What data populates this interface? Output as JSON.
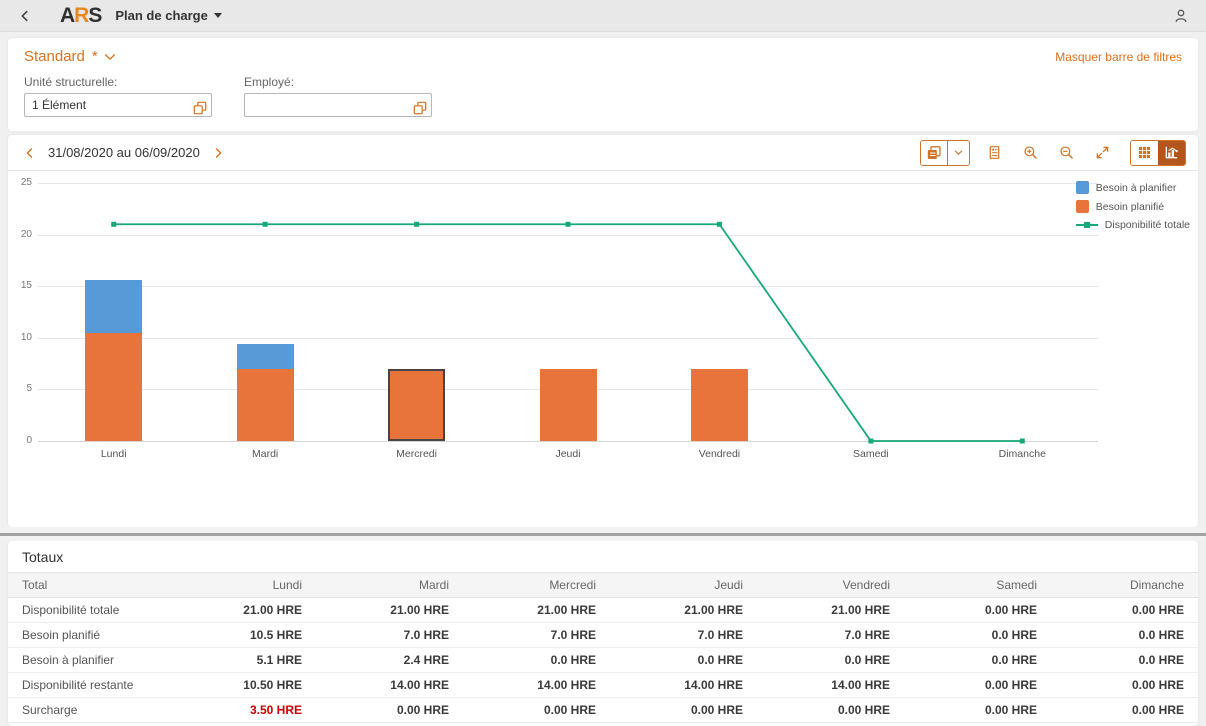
{
  "shell": {
    "logo": {
      "a": "A",
      "r": "R",
      "s": "S"
    },
    "app_title": "Plan de charge"
  },
  "filter_bar": {
    "variant_label": "Standard",
    "variant_modified": "*",
    "hide_filters_link": "Masquer barre de filtres",
    "fields": [
      {
        "label": "Unité structurelle:",
        "value": "1 Élément"
      },
      {
        "label": "Employé:",
        "value": ""
      }
    ]
  },
  "date_nav": {
    "range": "31/08/2020 au 06/09/2020"
  },
  "toolbar_icons": [
    "export-icon",
    "dropdown-chevron-icon",
    "legend-icon",
    "zoom-in-icon",
    "zoom-out-icon",
    "fullscreen-icon",
    "table-view-icon",
    "chart-view-icon"
  ],
  "chart_data": {
    "type": "bar",
    "stacked": true,
    "title": "",
    "categories": [
      "Lundi",
      "Mardi",
      "Mercredi",
      "Jeudi",
      "Vendredi",
      "Samedi",
      "Dimanche"
    ],
    "series": [
      {
        "name": "Besoin planifié",
        "type": "bar",
        "color": "#e8743b",
        "values": [
          10.5,
          7,
          7,
          7,
          7,
          0,
          0
        ]
      },
      {
        "name": "Besoin à planifier",
        "type": "bar",
        "color": "#5899d8",
        "values": [
          5.1,
          2.4,
          0,
          0,
          0,
          0,
          0
        ]
      },
      {
        "name": "Disponibilité totale",
        "type": "line",
        "color": "#17a87a",
        "values": [
          21,
          21,
          21,
          21,
          21,
          0,
          0
        ]
      }
    ],
    "legend_order": [
      1,
      0,
      2
    ],
    "legend_position": "right",
    "ylim": [
      0,
      25
    ],
    "yticks": [
      0,
      5,
      10,
      15,
      20,
      25
    ],
    "grid": true,
    "selected_category": "Mercredi"
  },
  "totals_table": {
    "title": "Totaux",
    "columns": [
      "Total",
      "Lundi",
      "Mardi",
      "Mercredi",
      "Jeudi",
      "Vendredi",
      "Samedi",
      "Dimanche"
    ],
    "rows": [
      {
        "label": "Disponibilité totale",
        "values": [
          "21.00 HRE",
          "21.00 HRE",
          "21.00 HRE",
          "21.00 HRE",
          "21.00 HRE",
          "0.00 HRE",
          "0.00 HRE"
        ]
      },
      {
        "label": "Besoin planifié",
        "values": [
          "10.5 HRE",
          "7.0 HRE",
          "7.0 HRE",
          "7.0 HRE",
          "7.0 HRE",
          "0.0 HRE",
          "0.0 HRE"
        ]
      },
      {
        "label": "Besoin à planifier",
        "values": [
          "5.1 HRE",
          "2.4 HRE",
          "0.0 HRE",
          "0.0 HRE",
          "0.0 HRE",
          "0.0 HRE",
          "0.0 HRE"
        ]
      },
      {
        "label": "Disponibilité restante",
        "values": [
          "10.50 HRE",
          "14.00 HRE",
          "14.00 HRE",
          "14.00 HRE",
          "14.00 HRE",
          "0.00 HRE",
          "0.00 HRE"
        ]
      },
      {
        "label": "Surcharge",
        "values": [
          "3.50 HRE",
          "0.00 HRE",
          "0.00 HRE",
          "0.00 HRE",
          "0.00 HRE",
          "0.00 HRE",
          "0.00 HRE"
        ],
        "alert_col": 0
      }
    ]
  },
  "colors": {
    "accent_orange": "#d9711f",
    "bar_orange": "#e8743b",
    "bar_blue": "#5899d8",
    "line_green": "#17a87a",
    "surcharge_red": "#cc0000",
    "active_toggle_bg": "#b3561d"
  }
}
